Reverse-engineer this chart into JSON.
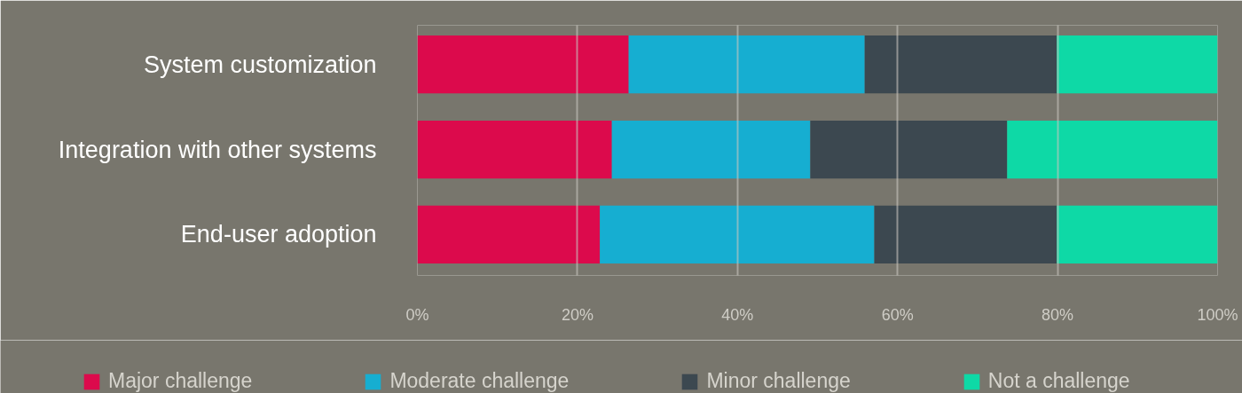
{
  "chart_data": {
    "type": "bar",
    "orientation": "horizontal",
    "stacked": true,
    "categories": [
      "System customization",
      "Integration with other systems",
      "End-user adoption"
    ],
    "series": [
      {
        "name": "Major challenge",
        "color": "#dc0a4c",
        "values": [
          26.4,
          24.3,
          22.8
        ]
      },
      {
        "name": "Moderate challenge",
        "color": "#16aed1",
        "values": [
          29.5,
          24.8,
          34.3
        ]
      },
      {
        "name": "Minor challenge",
        "color": "#3c4850",
        "values": [
          24.0,
          24.6,
          22.8
        ]
      },
      {
        "name": "Not a challenge",
        "color": "#0ed9a6",
        "values": [
          20.1,
          26.3,
          20.1
        ]
      }
    ],
    "xlim": [
      0,
      100
    ],
    "xticks": [
      {
        "value": 0,
        "label": "0%"
      },
      {
        "value": 20,
        "label": "20%"
      },
      {
        "value": 40,
        "label": "40%"
      },
      {
        "value": 60,
        "label": "60%"
      },
      {
        "value": 80,
        "label": "80%"
      },
      {
        "value": 100,
        "label": "100%"
      }
    ],
    "grid": "x",
    "legend": "bottom"
  }
}
